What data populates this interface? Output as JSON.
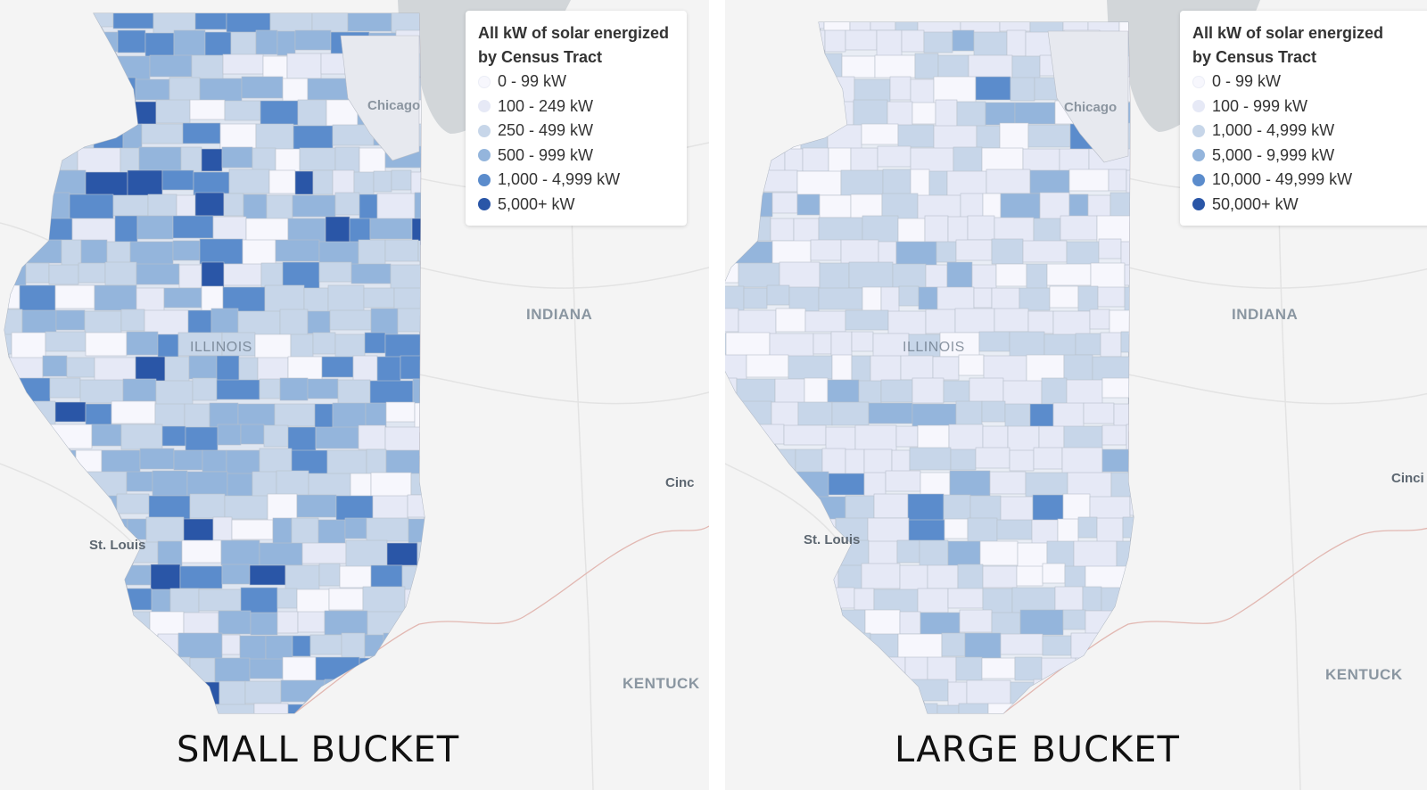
{
  "panels": [
    {
      "id": "small",
      "caption": "SMALL BUCKET",
      "legend": {
        "title": "All kW of solar energized by Census Tract",
        "items": [
          {
            "label": "0 - 99 kW",
            "color": "#f7f7fd"
          },
          {
            "label": "100 - 249 kW",
            "color": "#e6e9f6"
          },
          {
            "label": "250 - 499 kW",
            "color": "#c7d6e9"
          },
          {
            "label": "500 - 999 kW",
            "color": "#94b5dc"
          },
          {
            "label": "1,000 - 4,999 kW",
            "color": "#5b8ccc"
          },
          {
            "label": "5,000+ kW",
            "color": "#2a56a7"
          }
        ]
      },
      "labels": {
        "state_in": "INDIANA",
        "state_il": "ILLINOIS",
        "city_chicago": "Chicago",
        "city_stlouis": "St. Louis",
        "city_cinc": "Cinc",
        "state_ky": "KENTUCK"
      }
    },
    {
      "id": "large",
      "caption": "LARGE BUCKET",
      "legend": {
        "title": "All kW of solar energized by Census Tract",
        "items": [
          {
            "label": "0 - 99 kW",
            "color": "#f7f7fd"
          },
          {
            "label": "100 - 999 kW",
            "color": "#e6e9f6"
          },
          {
            "label": "1,000 - 4,999 kW",
            "color": "#c7d6e9"
          },
          {
            "label": "5,000 - 9,999 kW",
            "color": "#94b5dc"
          },
          {
            "label": "10,000 - 49,999 kW",
            "color": "#5b8ccc"
          },
          {
            "label": "50,000+ kW",
            "color": "#2a56a7"
          }
        ]
      },
      "labels": {
        "state_in": "INDIANA",
        "state_il": "ILLINOIS",
        "city_chicago": "Chicago",
        "city_stlouis": "St. Louis",
        "city_cinc": "Cinci",
        "state_ky": "KENTUCK"
      }
    }
  ]
}
